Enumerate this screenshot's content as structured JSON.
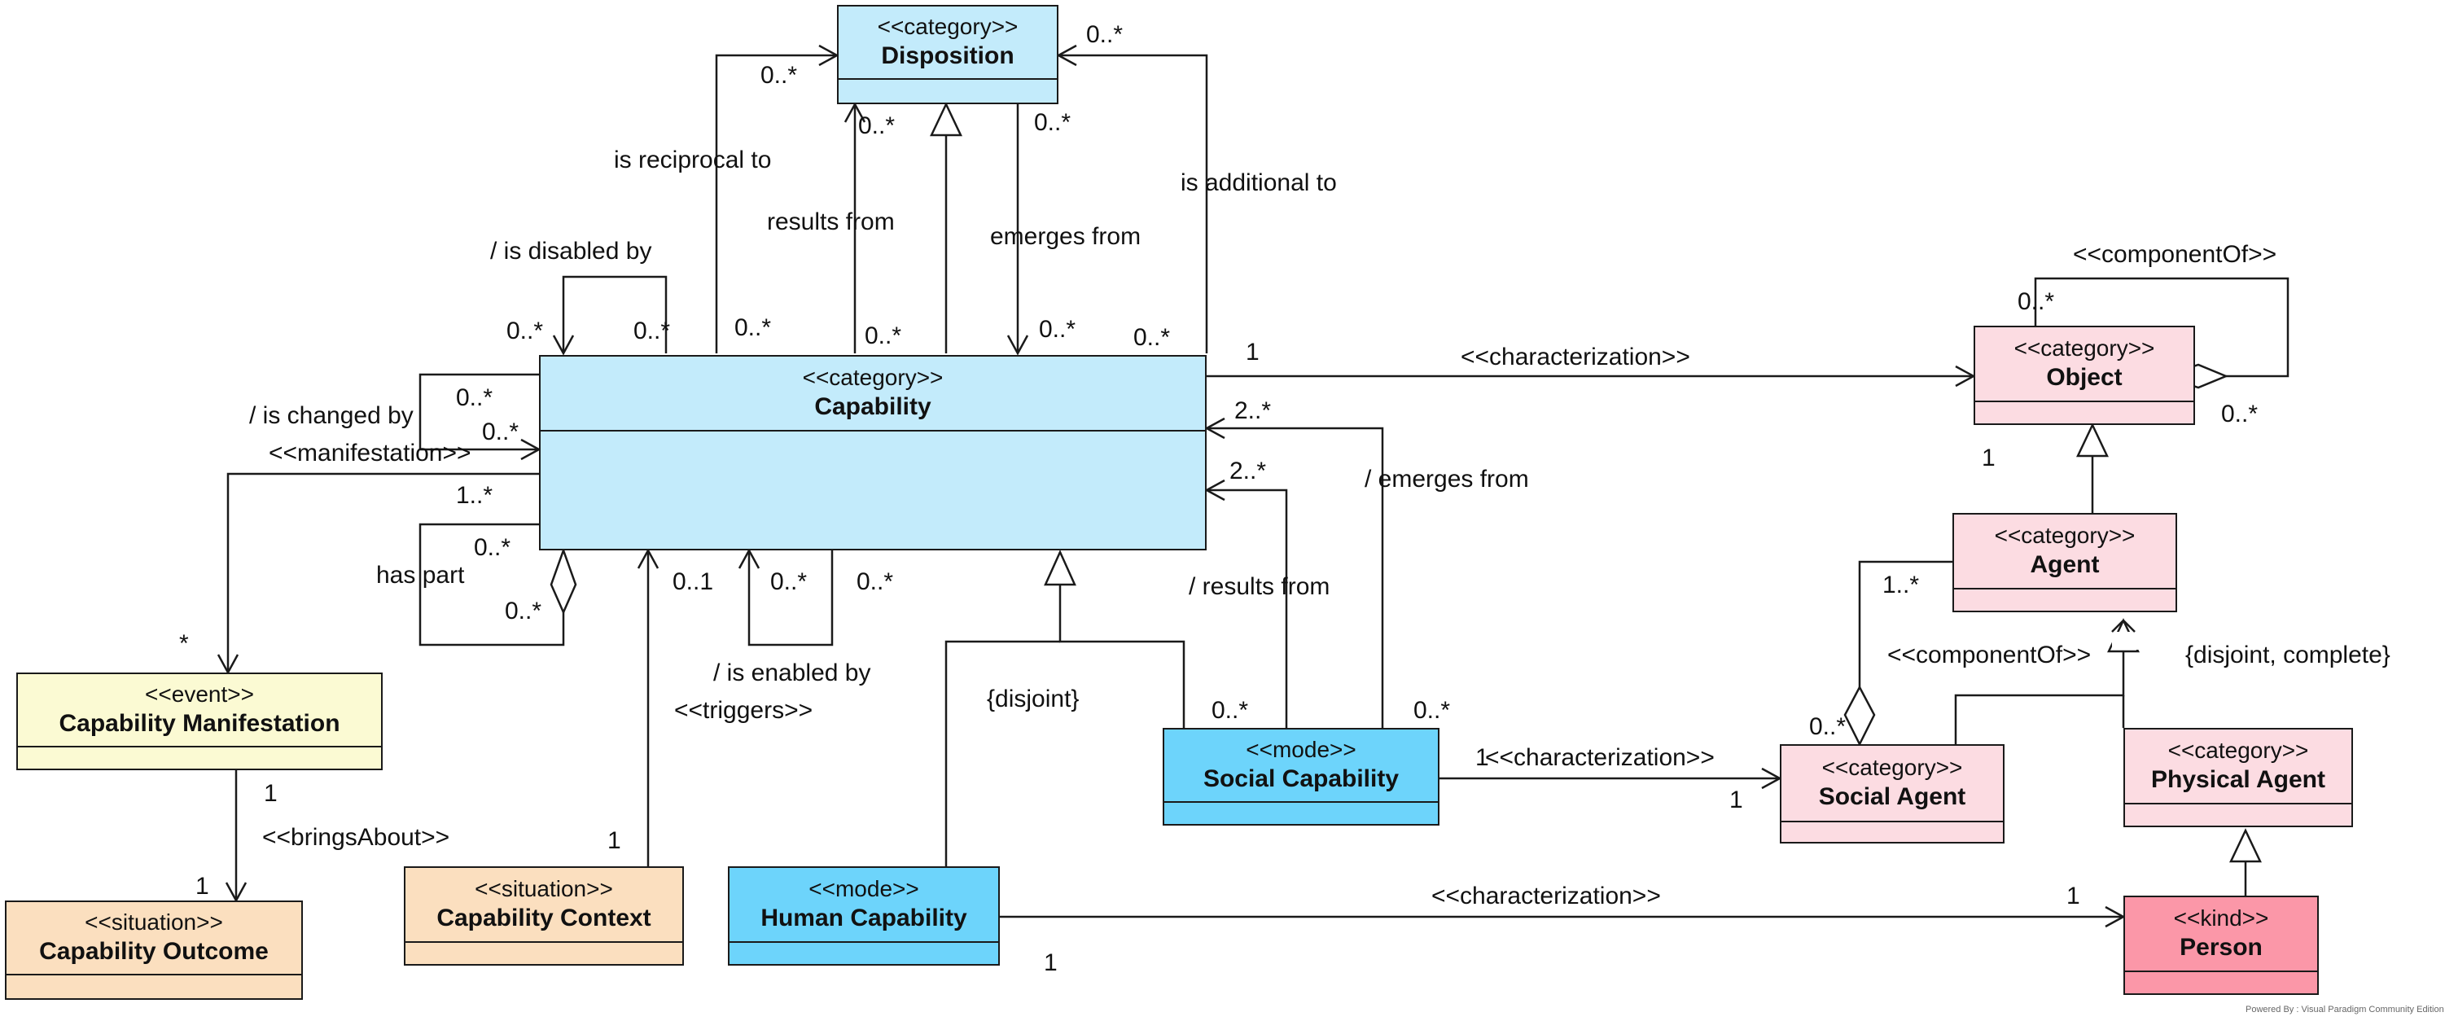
{
  "classes": {
    "disposition": {
      "stereotype": "<<category>>",
      "name": "Disposition",
      "fill": "#c3ebfb"
    },
    "capability": {
      "stereotype": "<<category>>",
      "name": "Capability",
      "fill": "#c3ebfb"
    },
    "object": {
      "stereotype": "<<category>>",
      "name": "Object",
      "fill": "#fcdce2"
    },
    "agent": {
      "stereotype": "<<category>>",
      "name": "Agent",
      "fill": "#fcdce2"
    },
    "capability_manifestation": {
      "stereotype": "<<event>>",
      "name": "Capability Manifestation",
      "fill": "#fbfad3"
    },
    "capability_outcome": {
      "stereotype": "<<situation>>",
      "name": "Capability Outcome",
      "fill": "#fbdfbf"
    },
    "capability_context": {
      "stereotype": "<<situation>>",
      "name": "Capability Context",
      "fill": "#fbdfbf"
    },
    "human_capability": {
      "stereotype": "<<mode>>",
      "name": "Human Capability",
      "fill": "#6dd4fb"
    },
    "social_capability": {
      "stereotype": "<<mode>>",
      "name": "Social Capability",
      "fill": "#6dd4fb"
    },
    "social_agent": {
      "stereotype": "<<category>>",
      "name": "Social Agent",
      "fill": "#fcdce2"
    },
    "physical_agent": {
      "stereotype": "<<category>>",
      "name": "Physical Agent",
      "fill": "#fcdce2"
    },
    "person": {
      "stereotype": "<<kind>>",
      "name": "Person",
      "fill": "#fb97a8"
    }
  },
  "labels": {
    "is_reciprocal_to": "is reciprocal to",
    "results_from": "results from",
    "emerges_from": "emerges from",
    "is_additional_to": "is additional to",
    "is_disabled_by": "/ is disabled by",
    "is_changed_by": "/ is changed by",
    "manifestation": "<<manifestation>>",
    "has_part": "has part",
    "is_enabled_by": "/ is enabled by",
    "triggers": "<<triggers>>",
    "brings_about": "<<bringsAbout>>",
    "disjoint": "{disjoint}",
    "slash_results_from": "/ results from",
    "slash_emerges_from": "/ emerges from",
    "characterization_top": "<<characterization>>",
    "characterization_social": "<<characterization>>",
    "characterization_human": "<<characterization>>",
    "component_of_top": "<<componentOf>>",
    "component_of_agent": "<<componentOf>>",
    "disjoint_complete": "{disjoint, complete}"
  },
  "multiplicities": {
    "m_recip_top": "0..*",
    "m_recip_bottom": "0..*",
    "m_results_top": "0..*",
    "m_results_bottom": "0..*",
    "m_emerges_top": "0..*",
    "m_emerges_bottom": "0..*",
    "m_additional_top": "0..*",
    "m_additional_bottom": "0..*",
    "m_disabled_left": "0..*",
    "m_disabled_right": "0..*",
    "m_changed_top": "0..*",
    "m_changed_bottom": "0..*",
    "m_manifest_cap": "1..*",
    "m_manifest_event": "*",
    "m_haspart_top": "0..*",
    "m_haspart_bottom": "0..*",
    "m_context_cap": "0..1",
    "m_context_ctx": "1",
    "m_enabled_left": "0..*",
    "m_enabled_right": "0..*",
    "m_brings_event": "1",
    "m_brings_outcome": "1",
    "m_char_top_cap": "1",
    "m_char_top_obj": "1",
    "m_comp_obj_top": "0..*",
    "m_comp_obj_right": "0..*",
    "m_sres_cap": "2..*",
    "m_sres_soc": "0..*",
    "m_semg_cap": "2..*",
    "m_semg_soc": "0..*",
    "m_char_soc_src": "1",
    "m_char_soc_dst": "1",
    "m_comp_agent": "1..*",
    "m_comp_social": "0..*",
    "m_char_hum_src": "1",
    "m_char_hum_dst": "1"
  },
  "footer": {
    "watermark": "Powered By : Visual Paradigm Community Edition"
  }
}
